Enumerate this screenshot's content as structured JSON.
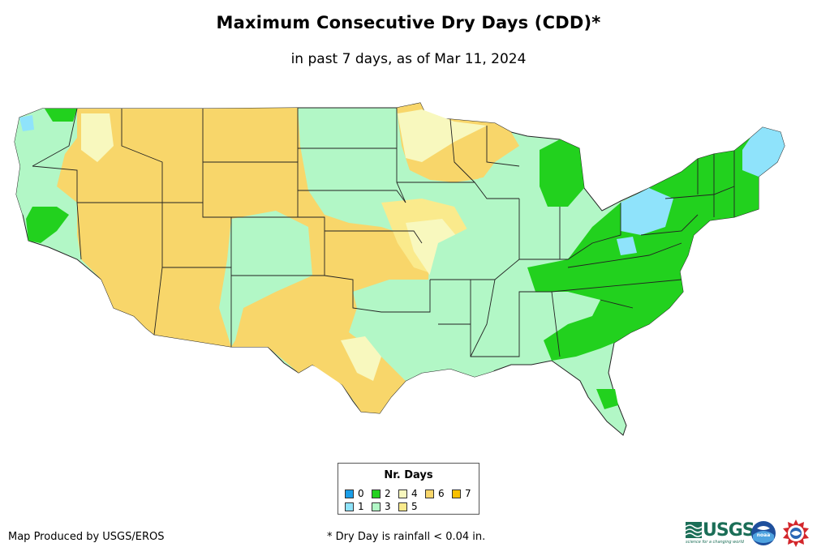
{
  "title": "Maximum Consecutive Dry Days (CDD)*",
  "subtitle": "in past 7 days, as of Mar 11, 2024",
  "legend": {
    "title": "Nr. Days",
    "items": [
      {
        "label": "0",
        "color": "#1a9ee8"
      },
      {
        "label": "1",
        "color": "#8fe3fb"
      },
      {
        "label": "2",
        "color": "#22d11e"
      },
      {
        "label": "3",
        "color": "#b2f7c6"
      },
      {
        "label": "4",
        "color": "#f8f8be"
      },
      {
        "label": "5",
        "color": "#faea8c"
      },
      {
        "label": "6",
        "color": "#f8d66a"
      },
      {
        "label": "7",
        "color": "#f8c000"
      }
    ]
  },
  "footer": {
    "producer": "Map Produced by USGS/EROS",
    "note": "* Dry Day is rainfall < 0.04 in."
  },
  "logos": {
    "usgs_text": "USGS",
    "usgs_tagline": "science for a changing world",
    "noaa_text": "noaa"
  }
}
